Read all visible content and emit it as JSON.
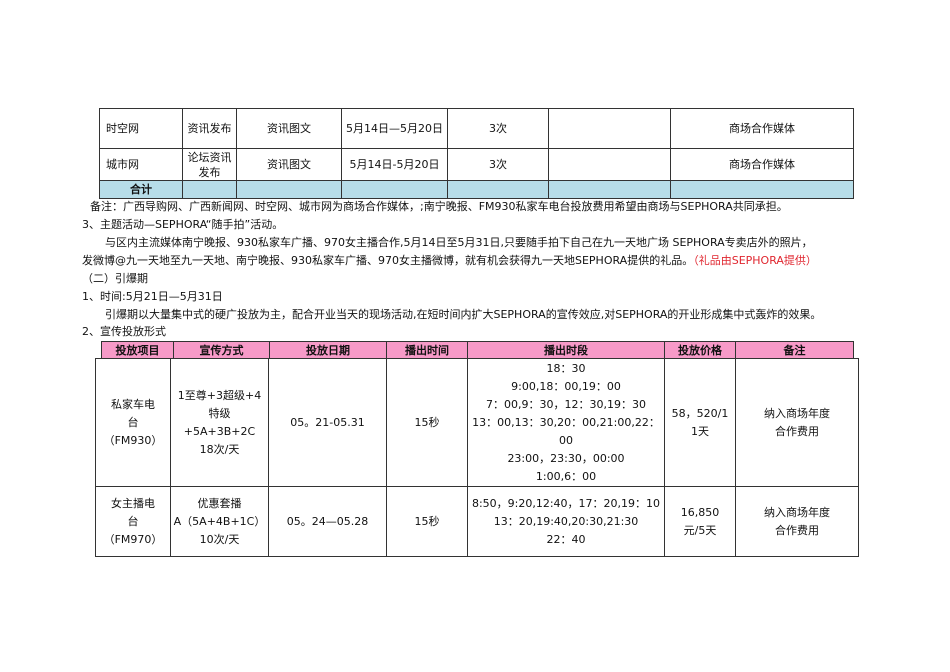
{
  "media_table": {
    "rows": [
      {
        "name": "时空网",
        "method": "资讯发布",
        "form": "资讯图文",
        "date": "5月14日—5月20日",
        "count": "3次",
        "blank": "",
        "note": "商场合作媒体"
      },
      {
        "name": "城市网",
        "method": "论坛资讯发布",
        "form": "资讯图文",
        "date": "5月14日-5月20日",
        "count": "3次",
        "blank": "",
        "note": "商场合作媒体"
      }
    ],
    "total_label": "合计"
  },
  "remark": "备注：广西导购网、广西新闻网、时空网、城市网为商场合作媒体，;南宁晚报、FM930私家车电台投放费用希望由商场与SEPHORA共同承担。",
  "theme_heading": "3、主题活动—SEPHORA“随手拍”活动。",
  "theme_body_1": "与区内主流媒体南宁晚报、930私家车广播、970女主播合作,5月14日至5月31日,只要随手拍下自己在九一天地广场 SEPHORA专卖店外的照片，",
  "theme_body_2": "发微博@九一天地至九一天地、南宁晚报、930私家车广播、970女主播微博，就有机会获得九一天地SEPHORA提供的礼品。",
  "theme_note": "（礼品由SEPHORA提供）",
  "phase_heading": "（二）引爆期",
  "time_line": "1、时间:5月21日—5月31日",
  "phase_body": "引爆期以大量集中式的硬广投放为主，配合开业当天的现场活动,在短时间内扩大SEPHORA的宣传效应,对SEPHORA的开业形成集中式轰炸的效果。",
  "form_heading": "2、宣传投放形式",
  "radio_table": {
    "headers": [
      "投放项目",
      "宣传方式",
      "投放日期",
      "播出时间",
      "播出时段",
      "投放价格",
      "备注"
    ],
    "header_color": "#f79ac8",
    "rows": [
      {
        "item": [
          "私家车电",
          "台",
          "（FM930）"
        ],
        "method": [
          "1至尊+3超级+4",
          "特级+5A+3B+2C",
          "18次/天"
        ],
        "date": "05。21-05.31",
        "duration": "15秒",
        "slots": [
          "18：30",
          "9:00,18：00,19：00",
          "7：00,9：30，12：30,19：30",
          "13：00,13：30,20：00,21:00,22：",
          "00",
          "23:00，23:30，00:00",
          "1:00,6：00"
        ],
        "price": [
          "58，520/1",
          "1天"
        ],
        "note": [
          "纳入商场年度",
          "合作费用"
        ]
      },
      {
        "item": [
          "女主播电",
          "台",
          "（FM970）"
        ],
        "method": [
          "优惠套播",
          "A（5A+4B+1C）",
          "10次/天"
        ],
        "date": "05。24—05.28",
        "duration": "15秒",
        "slots": [
          "8:50，9:20,12:40，17：20,19：10",
          "13：20,19:40,20:30,21:30",
          "22：40"
        ],
        "price": [
          "16,850",
          "元/5天"
        ],
        "note": [
          "纳入商场年度",
          "合作费用"
        ]
      }
    ]
  }
}
